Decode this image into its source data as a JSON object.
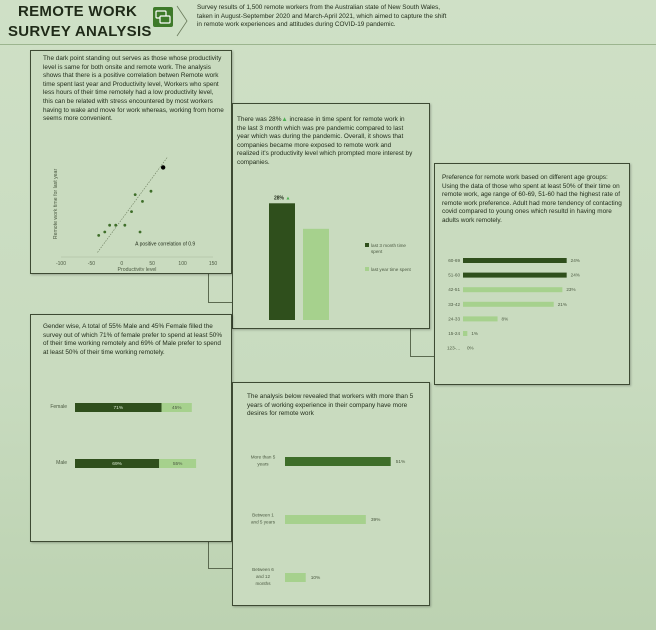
{
  "header": {
    "title_line1": "REMOTE WORK",
    "title_line2": "SURVEY ANALYSIS",
    "intro": "Survey results of 1,500 remote workers from the Australian state of New South Wales, taken in August-September 2020 and March-April 2021, which aimed to capture the shift in remote work experiences and attitudes during  COVID-19 pandemic."
  },
  "colors": {
    "dark_green": "#2f4f1c",
    "light_green": "#a6d18d",
    "mid_green": "#3e6e29",
    "accent": "#4caf50"
  },
  "panels": {
    "scatter": {
      "text": "The dark point standing out serves as those whose productivity level is same for both onsite and remote work. The analysis shows that there is a positive correlation betwen Remote work time spent last year and  Productivity level, Workers who spent less hours of their time remotely had a low productivity level, this can be related with stress encountered by most workers having to wake and move for work whereas, working from home seems more convenient.",
      "annotation": "A positive correlation of 0.9"
    },
    "time_increase": {
      "text_pre": "There was 28%",
      "text_post": " increase in time spent for remote work in the last 3 month which was pre pandemic compared to last year which was during the pandemic. Overall, it shows that companies became more exposed to remote work and realized it's productivity level which prompted more interest by companies.",
      "bar_label": "28%",
      "legend_1": "last 3 month time spent",
      "legend_2": "last year time spent"
    },
    "age": {
      "text": "Preference for remote work  based on different age groups: Using the data of those who spent at least 50% of their time on remote work, age range of 60-69, 51-60 had the highest rate of remote work preference. Adult had more tendency of contacting covid compared to young ones which resultd in having more adults work remotely."
    },
    "gender": {
      "text": "Gender wise, A total of 55% Male and 45% Female filled the survey out of which 71% of female prefer to spend at least 50% of their time working remotely and 69% of Male prefer to spend at least 50% of their time working remotely."
    },
    "experience": {
      "text": "The analysis below revealed that workers with more than 5 years of working experience in their company have more desires for remote work"
    }
  },
  "chart_data": [
    {
      "type": "scatter",
      "title": "",
      "xlabel": "Productivity level",
      "ylabel": "Remote work time for last year",
      "xlim": [
        -100,
        150
      ],
      "xticks": [
        "-100",
        "-50",
        "0",
        "50",
        "100",
        "150"
      ],
      "points": [
        [
          -28,
          10
        ],
        [
          -38,
          8
        ],
        [
          -20,
          14
        ],
        [
          -10,
          14
        ],
        [
          5,
          14
        ],
        [
          16,
          22
        ],
        [
          22,
          32
        ],
        [
          34,
          28
        ],
        [
          30,
          10
        ],
        [
          48,
          34
        ]
      ],
      "highlight_point": [
        68,
        48
      ],
      "trendline": true,
      "annotation": "A positive correlation of 0.9"
    },
    {
      "type": "bar",
      "title": "",
      "series": [
        {
          "name": "last 3 month time spent",
          "values": [
            128
          ]
        },
        {
          "name": "last year time spent",
          "values": [
            100
          ]
        }
      ],
      "data_label": "28%",
      "ylim": [
        0,
        140
      ]
    },
    {
      "type": "bar",
      "orientation": "horizontal",
      "categories": [
        "60-69",
        "51-60",
        "42-51",
        "33-42",
        "24-33",
        "15-24",
        "123-..."
      ],
      "values": [
        24,
        24,
        23,
        21,
        8,
        1,
        0
      ],
      "data_labels": [
        "24%",
        "24%",
        "23%",
        "21%",
        "8%",
        "1%",
        "0%"
      ],
      "xlim": [
        0,
        25
      ]
    },
    {
      "type": "bar",
      "orientation": "horizontal",
      "stacked": true,
      "categories": [
        "Female",
        "Male"
      ],
      "series": [
        {
          "values": [
            71,
            69
          ],
          "labels": [
            "71%",
            "69%"
          ]
        },
        {
          "values": [
            45,
            55
          ],
          "labels": [
            "45%",
            "55%"
          ]
        }
      ]
    },
    {
      "type": "bar",
      "orientation": "horizontal",
      "categories": [
        "More than 5 years",
        "Between 1 and 5 years",
        "Between 6 and 12 months"
      ],
      "values": [
        51,
        39,
        10
      ],
      "data_labels": [
        "51%",
        "39%",
        "10%"
      ],
      "xlim": [
        0,
        55
      ]
    }
  ]
}
